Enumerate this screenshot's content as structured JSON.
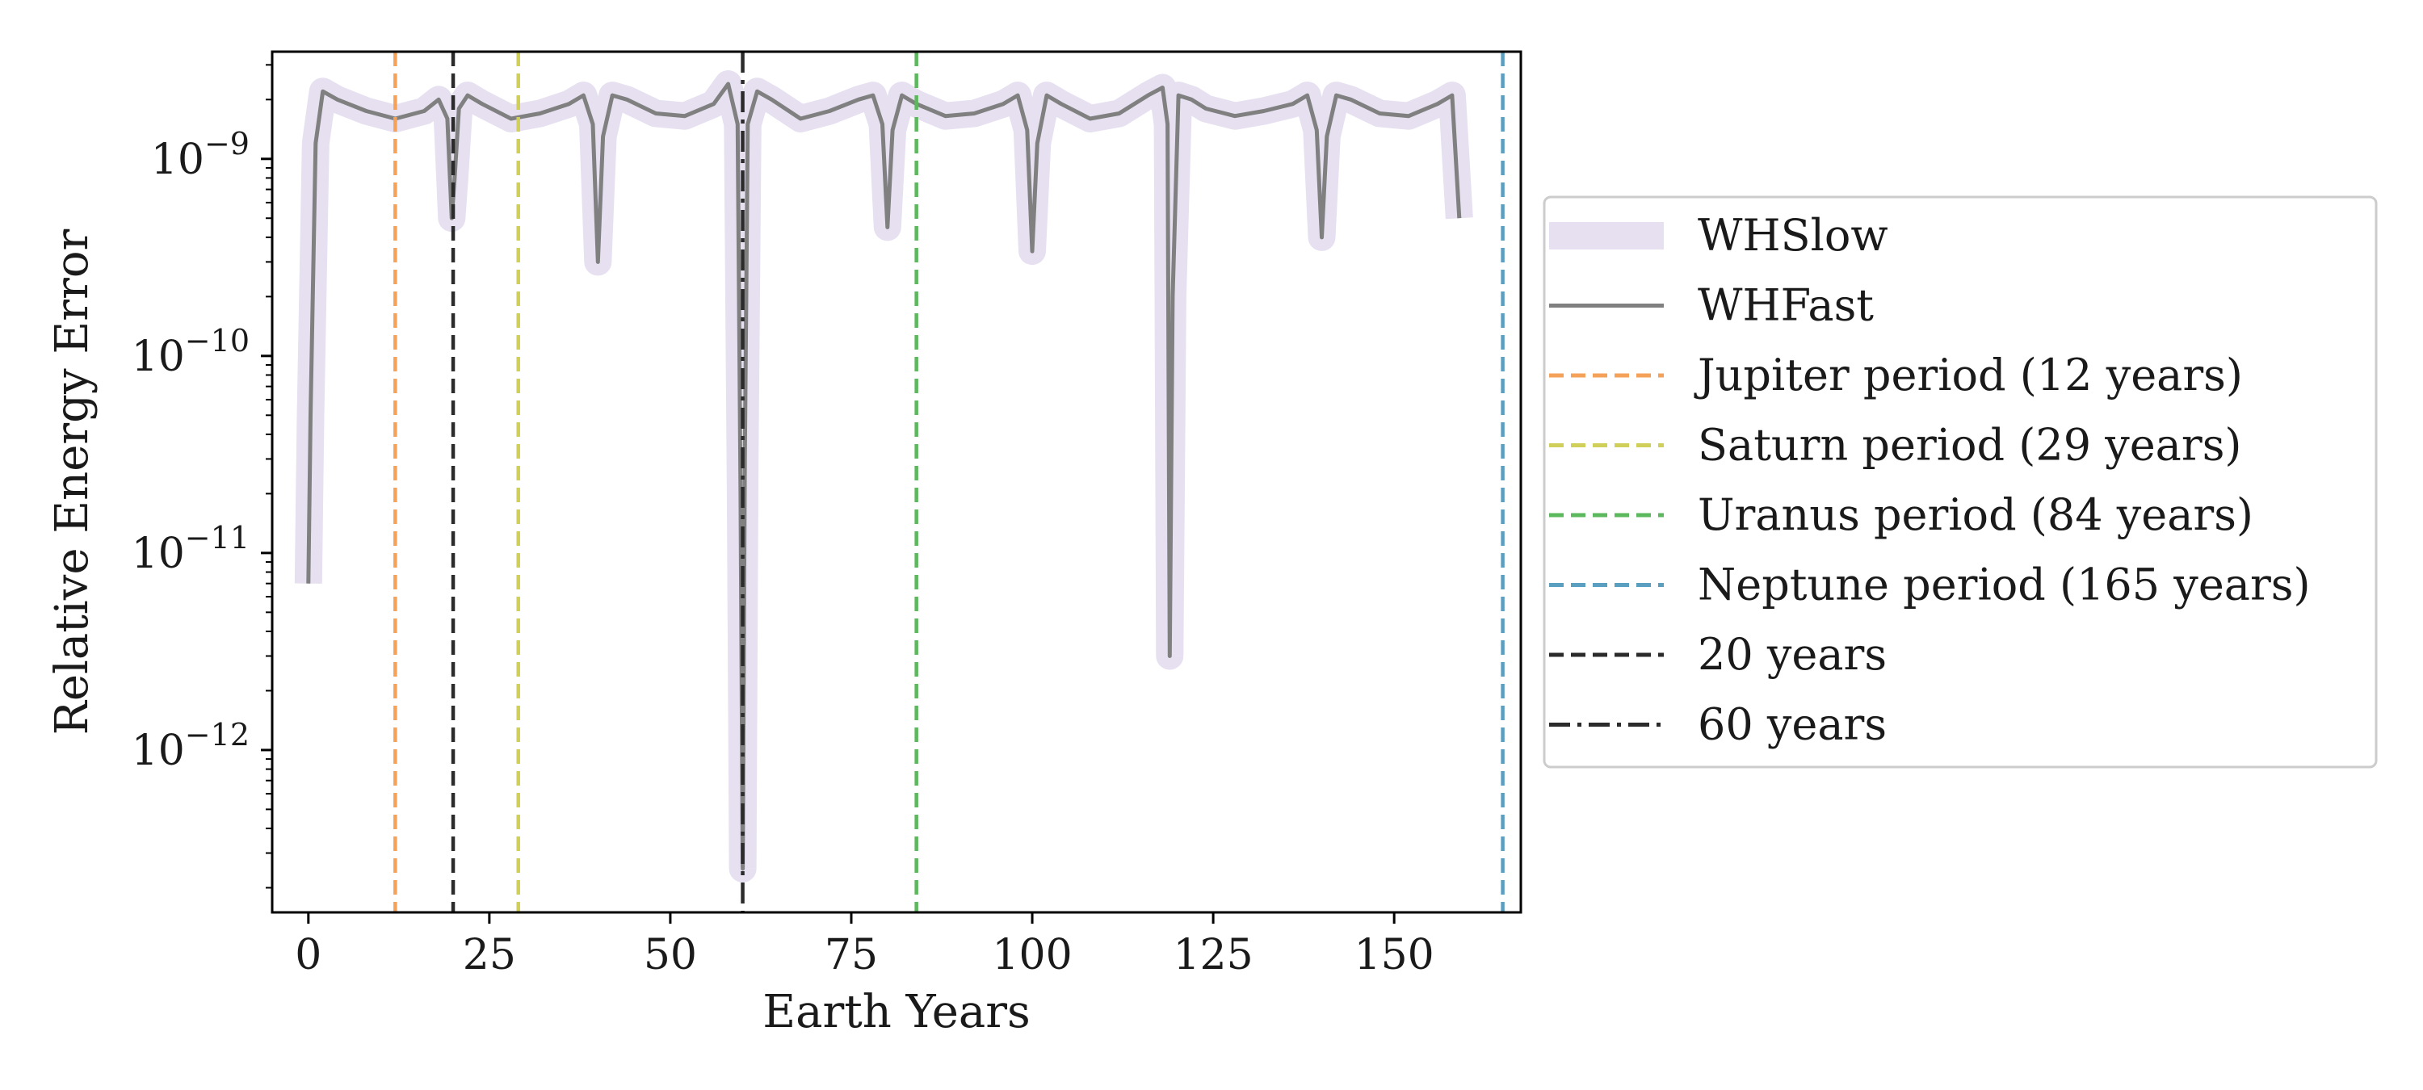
{
  "chart_data": {
    "type": "line",
    "title": "",
    "xlabel": "Earth Years",
    "ylabel": "Relative Energy Error",
    "xlim": [
      -5,
      167.5
    ],
    "ylim": [
      1.5e-13,
      3.5e-09
    ],
    "yscale": "log",
    "grid": false,
    "legend_placement": "outside-right",
    "x_ticks": [
      0,
      25,
      50,
      75,
      100,
      125,
      150
    ],
    "x_tick_labels": [
      "0",
      "25",
      "50",
      "75",
      "100",
      "125",
      "150"
    ],
    "y_ticks": [
      1e-12,
      1e-11,
      1e-10,
      1e-09
    ],
    "y_tick_labels": [
      {
        "base": "10",
        "exp": "−12"
      },
      {
        "base": "10",
        "exp": "−11"
      },
      {
        "base": "10",
        "exp": "−10"
      },
      {
        "base": "10",
        "exp": "−9"
      }
    ],
    "series": [
      {
        "name": "WHSlow",
        "color": "#e6e0f0",
        "style": "thick",
        "x": [
          0,
          0.3,
          1,
          2,
          4,
          8,
          12,
          16,
          18,
          19.2,
          19.8,
          20.2,
          20.8,
          22,
          24,
          28,
          32,
          36,
          38,
          39.3,
          40,
          40.7,
          42,
          44,
          48,
          52,
          56,
          58,
          59.3,
          59.7,
          60,
          60.3,
          60.7,
          62,
          64,
          68,
          72,
          76,
          78,
          79.3,
          80,
          80.7,
          82,
          84,
          88,
          92,
          96,
          98,
          99.3,
          100,
          100.7,
          102,
          104,
          108,
          112,
          116,
          118,
          118.7,
          119,
          119.4,
          120.2,
          122,
          124,
          128,
          132,
          136,
          138,
          139.3,
          140,
          140.7,
          142,
          144,
          148,
          152,
          156,
          158,
          159
        ],
        "y": [
          7e-12,
          5e-11,
          1.2e-09,
          2.2e-09,
          2e-09,
          1.75e-09,
          1.6e-09,
          1.75e-09,
          2e-09,
          1.6e-09,
          5e-10,
          8e-10,
          1.8e-09,
          2.1e-09,
          1.9e-09,
          1.6e-09,
          1.7e-09,
          1.9e-09,
          2.1e-09,
          1.5e-09,
          3e-10,
          1.3e-09,
          2.1e-09,
          2e-09,
          1.7e-09,
          1.65e-09,
          1.9e-09,
          2.4e-09,
          1.5e-09,
          2e-11,
          2.5e-13,
          3e-11,
          1.5e-09,
          2.2e-09,
          2e-09,
          1.6e-09,
          1.75e-09,
          2e-09,
          2.1e-09,
          1.5e-09,
          4.5e-10,
          1.4e-09,
          2.1e-09,
          1.9e-09,
          1.65e-09,
          1.7e-09,
          1.9e-09,
          2.1e-09,
          1.4e-09,
          3.4e-10,
          1.2e-09,
          2.1e-09,
          1.9e-09,
          1.6e-09,
          1.7e-09,
          2.1e-09,
          2.3e-09,
          1.5e-09,
          3e-12,
          2e-10,
          2.1e-09,
          2e-09,
          1.8e-09,
          1.65e-09,
          1.75e-09,
          1.9e-09,
          2.1e-09,
          1.4e-09,
          4e-10,
          1.3e-09,
          2.1e-09,
          2e-09,
          1.7e-09,
          1.65e-09,
          1.9e-09,
          2.1e-09,
          5e-10
        ]
      },
      {
        "name": "WHFast",
        "color": "#808080",
        "style": "solid",
        "x": [
          0,
          0.3,
          1,
          2,
          4,
          8,
          12,
          16,
          18,
          19.2,
          19.8,
          20.2,
          20.8,
          22,
          24,
          28,
          32,
          36,
          38,
          39.3,
          40,
          40.7,
          42,
          44,
          48,
          52,
          56,
          58,
          59.3,
          59.7,
          60,
          60.3,
          60.7,
          62,
          64,
          68,
          72,
          76,
          78,
          79.3,
          80,
          80.7,
          82,
          84,
          88,
          92,
          96,
          98,
          99.3,
          100,
          100.7,
          102,
          104,
          108,
          112,
          116,
          118,
          118.7,
          119,
          119.4,
          120.2,
          122,
          124,
          128,
          132,
          136,
          138,
          139.3,
          140,
          140.7,
          142,
          144,
          148,
          152,
          156,
          158,
          159
        ],
        "y": [
          7e-12,
          5e-11,
          1.2e-09,
          2.2e-09,
          2e-09,
          1.75e-09,
          1.6e-09,
          1.75e-09,
          2e-09,
          1.6e-09,
          5e-10,
          8e-10,
          1.8e-09,
          2.1e-09,
          1.9e-09,
          1.6e-09,
          1.7e-09,
          1.9e-09,
          2.1e-09,
          1.5e-09,
          3e-10,
          1.3e-09,
          2.1e-09,
          2e-09,
          1.7e-09,
          1.65e-09,
          1.9e-09,
          2.4e-09,
          1.5e-09,
          2e-11,
          2.5e-13,
          3e-11,
          1.5e-09,
          2.2e-09,
          2e-09,
          1.6e-09,
          1.75e-09,
          2e-09,
          2.1e-09,
          1.5e-09,
          4.5e-10,
          1.4e-09,
          2.1e-09,
          1.9e-09,
          1.65e-09,
          1.7e-09,
          1.9e-09,
          2.1e-09,
          1.4e-09,
          3.4e-10,
          1.2e-09,
          2.1e-09,
          1.9e-09,
          1.6e-09,
          1.7e-09,
          2.1e-09,
          2.3e-09,
          1.5e-09,
          3e-12,
          2e-10,
          2.1e-09,
          2e-09,
          1.8e-09,
          1.65e-09,
          1.75e-09,
          1.9e-09,
          2.1e-09,
          1.4e-09,
          4e-10,
          1.3e-09,
          2.1e-09,
          2e-09,
          1.7e-09,
          1.65e-09,
          1.9e-09,
          2.1e-09,
          5e-10
        ]
      }
    ],
    "vlines": [
      {
        "name": "Jupiter period (12 years)",
        "x": 12,
        "color": "#f4a259",
        "style": "dashed"
      },
      {
        "name": "Saturn period (29 years)",
        "x": 29,
        "color": "#cfcf5a",
        "style": "dashed"
      },
      {
        "name": "Uranus period (84 years)",
        "x": 84,
        "color": "#5cb85c",
        "style": "dashed"
      },
      {
        "name": "Neptune period (165 years)",
        "x": 165,
        "color": "#5b9fc0",
        "style": "dashed"
      },
      {
        "name": "20 years",
        "x": 20,
        "color": "#2b2b2b",
        "style": "dashed"
      },
      {
        "name": "60 years",
        "x": 60,
        "color": "#2b2b2b",
        "style": "dashdot"
      }
    ]
  }
}
